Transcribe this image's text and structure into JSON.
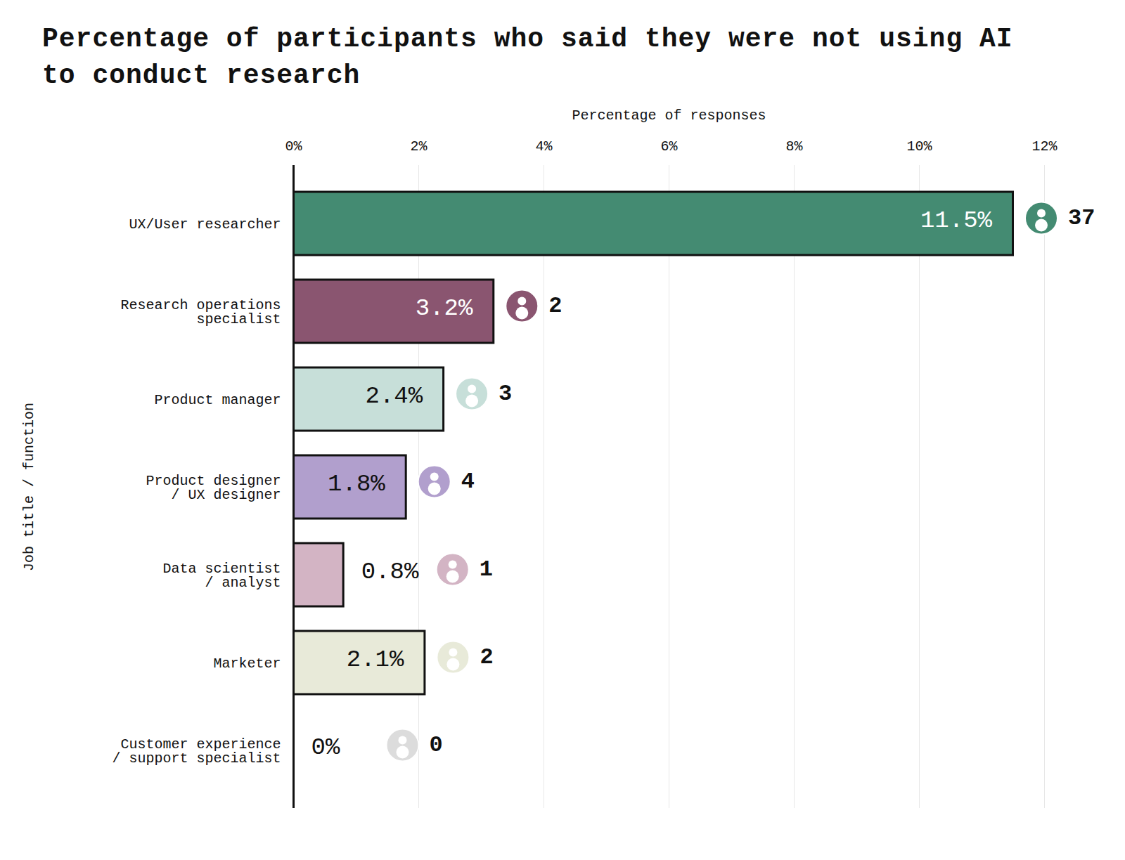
{
  "chart_data": {
    "type": "bar",
    "orientation": "horizontal",
    "title": "Percentage of participants who said they were not using AI to conduct research",
    "x_label": "Percentage of responses",
    "y_label": "Job title / function",
    "categories": [
      "UX/User researcher",
      "Research operations\nspecialist",
      "Product manager",
      "Product designer\n/ UX designer",
      "Data scientist\n/ analyst",
      "Marketer",
      "Customer experience\n/ support specialist"
    ],
    "values": [
      11.5,
      3.2,
      2.4,
      1.8,
      0.8,
      2.1,
      0
    ],
    "value_labels": [
      "11.5%",
      "3.2%",
      "2.4%",
      "1.8%",
      "0.8%",
      "2.1%",
      "0%"
    ],
    "counts": [
      37,
      2,
      3,
      4,
      1,
      2,
      0
    ],
    "colors": [
      "#448b72",
      "#8a5570",
      "#c7dfd9",
      "#b19fcd",
      "#d3b4c4",
      "#e8ead9",
      "#dcdcdc"
    ],
    "xlim": [
      0,
      12
    ],
    "xticks": [
      {
        "value": 0,
        "label": "0%"
      },
      {
        "value": 2,
        "label": "2%"
      },
      {
        "value": 4,
        "label": "4%"
      },
      {
        "value": 6,
        "label": "6%"
      },
      {
        "value": 8,
        "label": "8%"
      },
      {
        "value": 10,
        "label": "10%"
      },
      {
        "value": 12,
        "label": "12%"
      }
    ],
    "grid": true,
    "data_labels": true
  }
}
